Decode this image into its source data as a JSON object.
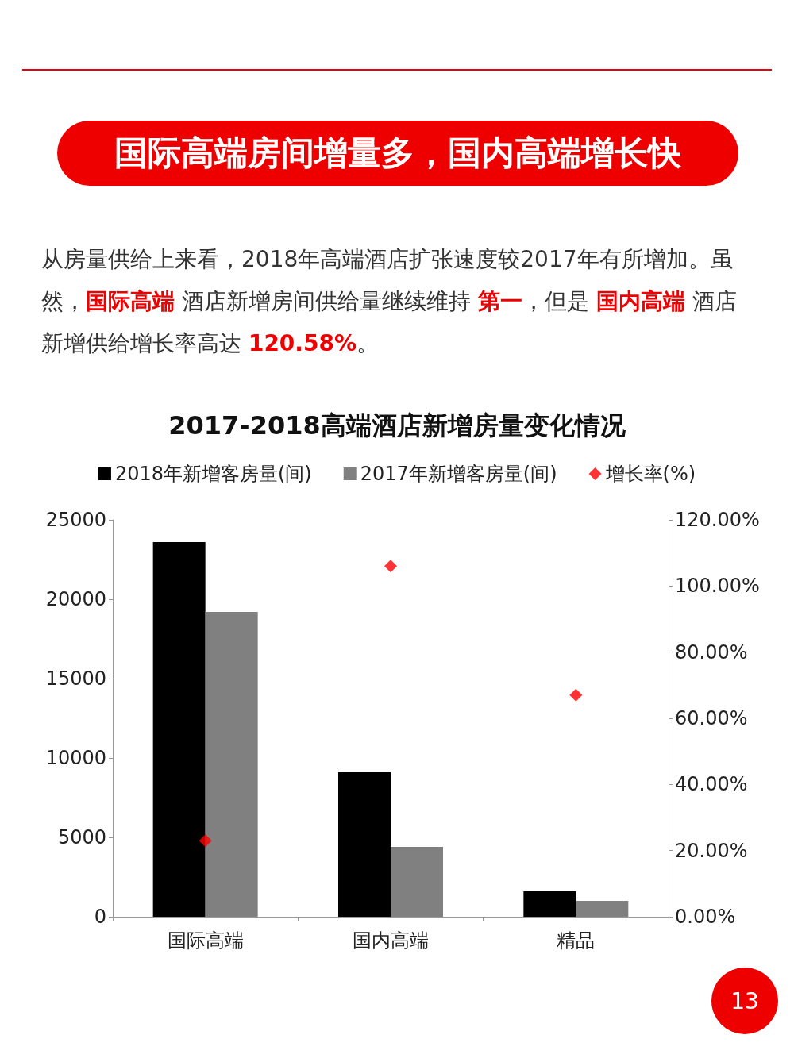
{
  "chart_data": {
    "type": "bar",
    "title": "2017-2018高端酒店新增房量变化情况",
    "subtitle": "国际高端房间增量多，国内高端增长快",
    "annotations": [
      "从房量供给上来看，2018年高端酒店扩张速度较2017年有所增加。虽然，",
      "国际高端",
      " 酒店新增房间供给量继续维持 ",
      "第一",
      "，但是 ",
      "国内高端",
      " 酒店新增供给增长率高达 ",
      "120.58%",
      "。",
      "13"
    ],
    "categories": [
      "国际高端",
      "国内高端",
      "精品"
    ],
    "series": [
      {
        "name": "2018年新增客房量(间)",
        "color": "#000000",
        "values": [
          23600,
          9100,
          1600
        ]
      },
      {
        "name": "2017年新增客房量(间)",
        "color": "#808080",
        "values": [
          19200,
          4400,
          1000
        ]
      },
      {
        "name": "增长率(%)",
        "type": "scatter",
        "axis": "y2",
        "marker": "diamond",
        "color": "#ff0000",
        "values": [
          23,
          106,
          67
        ]
      }
    ],
    "ylim": [
      0,
      25000
    ],
    "yticks": [
      0,
      5000,
      10000,
      15000,
      20000,
      25000
    ],
    "y2lim": [
      0,
      120
    ],
    "y2ticks": [
      {
        "value": 0,
        "label": "0.00%"
      },
      {
        "value": 20,
        "label": "20.00%"
      },
      {
        "value": 40,
        "label": "40.00%"
      },
      {
        "value": 60,
        "label": "60.00%"
      },
      {
        "value": 80,
        "label": "80.00%"
      },
      {
        "value": 100,
        "label": "100.00%"
      },
      {
        "value": 120,
        "label": "120.00%"
      }
    ],
    "legend": "top",
    "grid": false
  }
}
